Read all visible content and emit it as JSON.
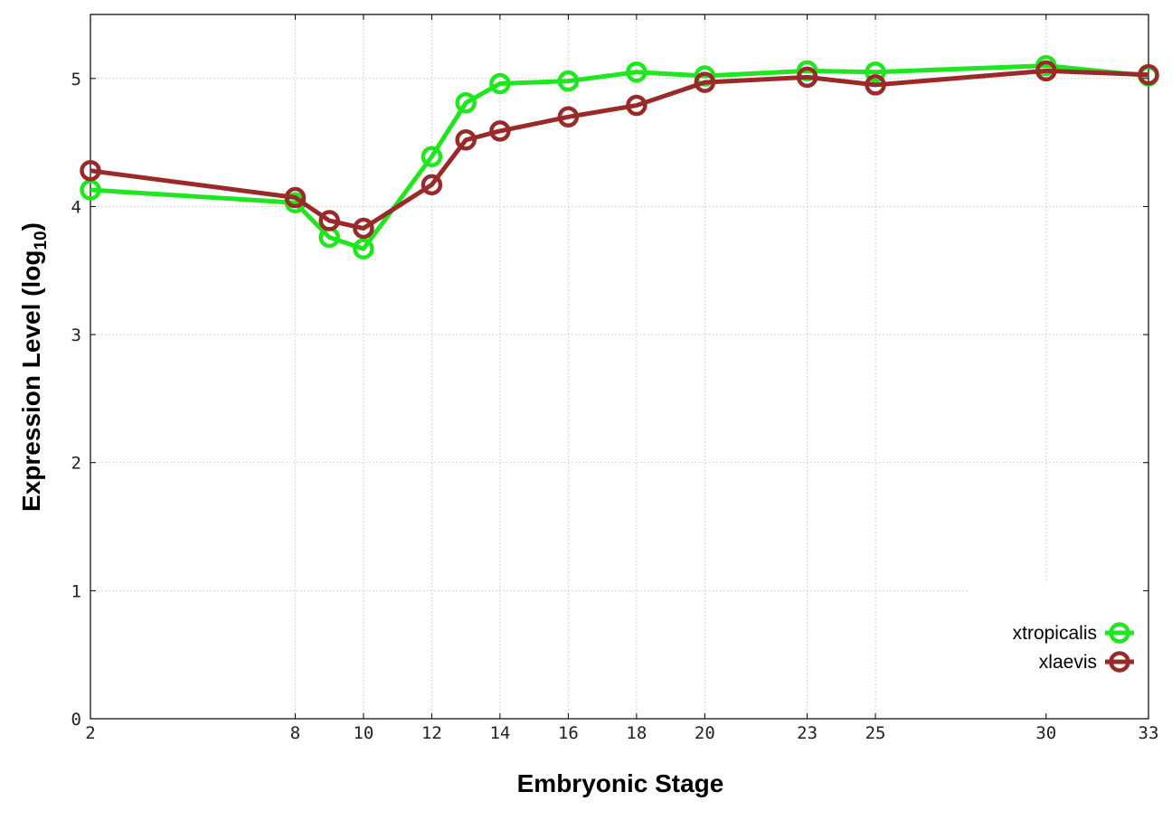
{
  "chart_data": {
    "type": "line",
    "xlabel": "Embryonic Stage",
    "ylabel": "Expression Level (log",
    "ylabel_subscript": "10",
    "ylabel_close": ")",
    "x_ticks": [
      2,
      8,
      10,
      12,
      14,
      16,
      18,
      20,
      23,
      25,
      30,
      33
    ],
    "y_ticks": [
      0,
      1,
      2,
      3,
      4,
      5
    ],
    "ylim": [
      0,
      5.5
    ],
    "x_scale": "stage-index",
    "grid": true,
    "legend_position": "bottom-right",
    "x": [
      2,
      8,
      9,
      10,
      12,
      13,
      14,
      16,
      18,
      20,
      23,
      25,
      30,
      33
    ],
    "series": [
      {
        "name": "xtropicalis",
        "color": "#1fe61f",
        "values": [
          4.13,
          4.03,
          3.76,
          3.67,
          4.39,
          4.81,
          4.96,
          4.98,
          5.05,
          5.02,
          5.06,
          5.05,
          5.1,
          5.02
        ]
      },
      {
        "name": "xlaevis",
        "color": "#9a2a2a",
        "values": [
          4.28,
          4.07,
          3.89,
          3.83,
          4.17,
          4.52,
          4.59,
          4.7,
          4.79,
          4.97,
          5.01,
          4.95,
          5.06,
          5.03
        ]
      }
    ]
  }
}
